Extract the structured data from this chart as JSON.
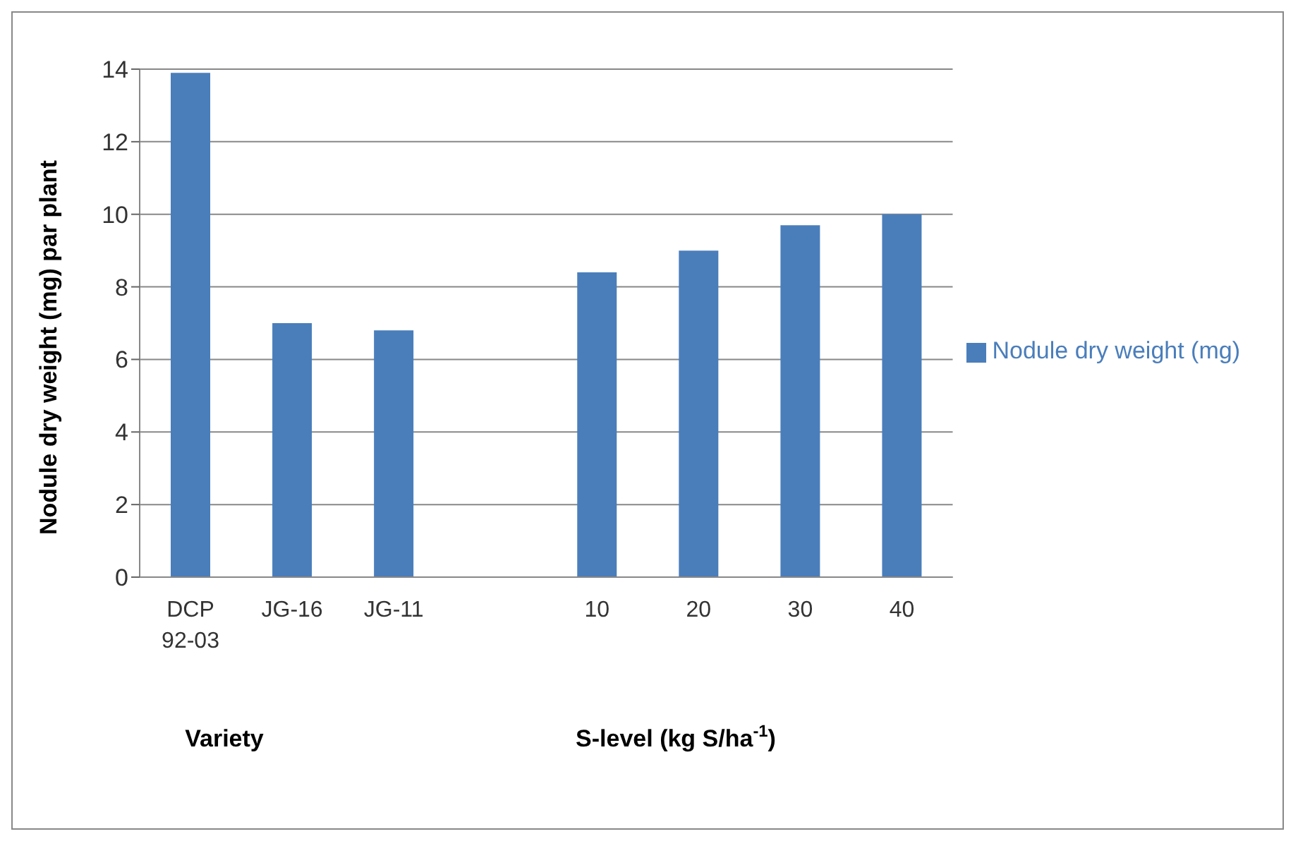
{
  "chart_data": {
    "type": "bar",
    "ylabel": "Nodule dry weight (mg) par plant",
    "categories": [
      "DCP 92-03",
      "JG-16",
      "JG-11",
      null,
      "10",
      "20",
      "30",
      "40"
    ],
    "series": [
      {
        "name": "Nodule dry weight (mg)",
        "color": "#4a7ebb",
        "values": [
          13.9,
          7.0,
          6.8,
          null,
          8.4,
          9.0,
          9.7,
          10.0
        ]
      }
    ],
    "ylim": [
      0,
      14
    ],
    "yticks": [
      0,
      2,
      4,
      6,
      8,
      10,
      12,
      14
    ],
    "grid": "y",
    "legend": "right",
    "annotations": [
      "Variety",
      "S-level (kg S/ha$^{-1}$)"
    ]
  }
}
